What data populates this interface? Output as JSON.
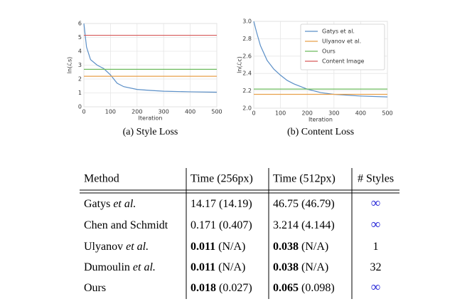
{
  "chart_data": [
    {
      "type": "line",
      "caption": "(a)  Style Loss",
      "xlabel": "Iteration",
      "ylabel": "ln(ℒs)",
      "xlim": [
        0,
        500
      ],
      "xticks": [
        0,
        100,
        200,
        300,
        400,
        500
      ],
      "ylim": [
        0,
        6
      ],
      "yticks": [
        0,
        1,
        2,
        3,
        4,
        5,
        6
      ],
      "grid": true,
      "series": [
        {
          "name": "Gatys et al.",
          "color": "#5b8fc7",
          "x": [
            0,
            10,
            25,
            50,
            75,
            100,
            125,
            150,
            200,
            250,
            300,
            400,
            500
          ],
          "values": [
            6.0,
            4.3,
            3.4,
            3.0,
            2.75,
            2.3,
            1.7,
            1.45,
            1.25,
            1.18,
            1.12,
            1.08,
            1.05
          ]
        },
        {
          "name": "Ulyanov et al.",
          "color": "#e8a04a",
          "x": [
            0,
            500
          ],
          "values": [
            2.2,
            2.2
          ]
        },
        {
          "name": "Ours",
          "color": "#6dbb5e",
          "x": [
            0,
            500
          ],
          "values": [
            2.7,
            2.7
          ]
        },
        {
          "name": "Content Image",
          "color": "#d65a5a",
          "x": [
            0,
            500
          ],
          "values": [
            5.15,
            5.15
          ]
        }
      ]
    },
    {
      "type": "line",
      "caption": "(b)  Content Loss",
      "xlabel": "Iteration",
      "ylabel": "ln(ℒc)",
      "xlim": [
        0,
        500
      ],
      "xticks": [
        0,
        100,
        200,
        300,
        400,
        500
      ],
      "ylim": [
        2.0,
        3.0
      ],
      "yticks": [
        {
          "value": 2.0,
          "label": "2.0"
        },
        2.2,
        2.4,
        2.6,
        2.8,
        {
          "value": 3.0,
          "label": "3.0"
        }
      ],
      "grid": true,
      "legend": "upper right",
      "series": [
        {
          "name": "Gatys et al.",
          "color": "#5b8fc7",
          "x": [
            0,
            10,
            25,
            50,
            75,
            100,
            125,
            150,
            200,
            250,
            300,
            400,
            500
          ],
          "values": [
            3.0,
            2.88,
            2.72,
            2.55,
            2.45,
            2.38,
            2.32,
            2.28,
            2.22,
            2.18,
            2.16,
            2.14,
            2.13
          ]
        },
        {
          "name": "Ulyanov et al.",
          "color": "#e8a04a",
          "x": [
            0,
            500
          ],
          "values": [
            2.16,
            2.16
          ]
        },
        {
          "name": "Ours",
          "color": "#6dbb5e",
          "x": [
            0,
            500
          ],
          "values": [
            2.22,
            2.22
          ]
        },
        {
          "name": "Content Image",
          "color": "#d65a5a",
          "x": [
            0,
            500
          ],
          "values": [
            null,
            null
          ]
        }
      ]
    }
  ],
  "table": {
    "header": [
      "Method",
      "Time (256px)",
      "Time (512px)",
      "# Styles"
    ],
    "rows": [
      [
        [
          {
            "text": "Gatys "
          },
          {
            "text": "et al.",
            "style": "italic"
          }
        ],
        [
          {
            "text": "14.17 (14.19)"
          }
        ],
        [
          {
            "text": "46.75 (46.79)"
          }
        ],
        [
          {
            "text": "∞",
            "style": "blue"
          }
        ]
      ],
      [
        [
          {
            "text": "Chen and Schmidt"
          }
        ],
        [
          {
            "text": "0.171 (0.407)"
          }
        ],
        [
          {
            "text": "3.214 (4.144)"
          }
        ],
        [
          {
            "text": "∞",
            "style": "blue"
          }
        ]
      ],
      [
        [
          {
            "text": "Ulyanov "
          },
          {
            "text": "et al.",
            "style": "italic"
          }
        ],
        [
          {
            "text": "0.011",
            "style": "bold"
          },
          {
            "text": " (N/A)"
          }
        ],
        [
          {
            "text": "0.038",
            "style": "bold"
          },
          {
            "text": " (N/A)"
          }
        ],
        [
          {
            "text": "1"
          }
        ]
      ],
      [
        [
          {
            "text": "Dumoulin "
          },
          {
            "text": "et al.",
            "style": "italic"
          }
        ],
        [
          {
            "text": "0.011",
            "style": "bold"
          },
          {
            "text": " (N/A)"
          }
        ],
        [
          {
            "text": "0.038",
            "style": "bold"
          },
          {
            "text": " (N/A)"
          }
        ],
        [
          {
            "text": "32"
          }
        ]
      ],
      [
        [
          {
            "text": "Ours"
          }
        ],
        [
          {
            "text": "0.018",
            "style": "bold"
          },
          {
            "text": " (0.027)"
          }
        ],
        [
          {
            "text": "0.065",
            "style": "bold"
          },
          {
            "text": " (0.098)"
          }
        ],
        [
          {
            "text": "∞",
            "style": "blue"
          }
        ]
      ]
    ]
  }
}
